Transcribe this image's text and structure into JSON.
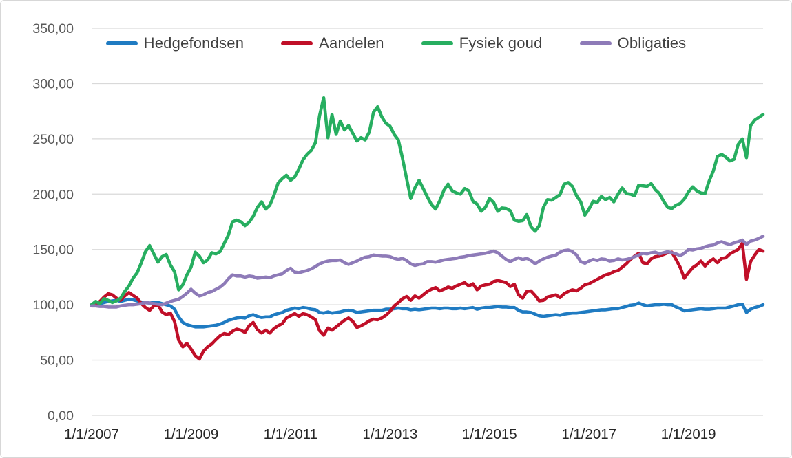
{
  "chart_data": {
    "type": "line",
    "title": "",
    "xlabel": "",
    "ylabel": "",
    "grid": "horizontal",
    "legend_position": "top",
    "x_frequency": "monthly",
    "x_range": [
      "1/1/2007",
      "7/1/2020"
    ],
    "ylim": [
      0,
      350
    ],
    "y_tick_labels": [
      "0,00",
      "50,00",
      "100,00",
      "150,00",
      "200,00",
      "250,00",
      "300,00",
      "350,00"
    ],
    "x_tick_labels": [
      "1/1/2007",
      "1/1/2009",
      "1/1/2011",
      "1/1/2013",
      "1/1/2015",
      "1/1/2017",
      "1/1/2019"
    ],
    "x_tick_month_indices": [
      0,
      24,
      48,
      72,
      96,
      120,
      144
    ],
    "colors": {
      "grid": "#d9d9d9",
      "y_tick_text": "#595959",
      "x_tick_text": "#262626",
      "legend_text": "#404040"
    },
    "series": [
      {
        "name": "Hedgefondsen",
        "color": "#1f7bc2",
        "values": [
          100,
          100.5,
          101,
          102,
          103,
          103.5,
          104,
          103,
          104,
          105,
          104.5,
          103.5,
          102.5,
          102,
          101.5,
          102,
          102,
          101,
          100,
          99,
          96,
          89,
          84,
          82,
          81,
          80,
          80,
          80,
          80.5,
          81,
          81.5,
          82.5,
          84,
          86,
          87,
          88,
          88.5,
          88,
          90,
          91,
          89.5,
          88.5,
          89,
          89,
          91,
          92,
          93,
          95,
          96,
          97,
          96.5,
          97.5,
          97,
          96,
          95.5,
          93,
          92.5,
          93.5,
          92.5,
          93,
          93.5,
          94.5,
          95,
          94.5,
          93,
          93.5,
          94,
          94.5,
          95,
          95,
          95,
          96,
          96,
          96.5,
          97,
          96.5,
          96.5,
          95.5,
          96,
          95.5,
          96,
          96.5,
          97,
          97,
          96.5,
          97,
          97,
          96.5,
          96.5,
          97,
          96.5,
          97,
          97.5,
          96,
          97,
          97.5,
          97.5,
          98,
          98.5,
          98,
          98,
          97.5,
          97.5,
          95,
          93.5,
          93.5,
          93,
          91.5,
          90,
          89.5,
          90,
          90.5,
          91,
          90.5,
          91.5,
          92,
          92.5,
          92.5,
          93,
          93.5,
          94,
          94.5,
          95,
          95.5,
          95.5,
          96,
          96.5,
          96.5,
          97.5,
          98.5,
          99.5,
          100,
          101.5,
          100,
          99,
          99.5,
          100,
          100,
          100.5,
          100,
          100,
          98,
          96.5,
          94.5,
          95,
          95.5,
          96,
          96.5,
          96,
          96,
          96.5,
          97,
          97,
          97,
          98,
          99,
          100,
          100.5,
          93,
          96,
          97.5,
          98.5,
          100
        ]
      },
      {
        "name": "Aandelen",
        "color": "#c00f28",
        "values": [
          100,
          101,
          103,
          107,
          110,
          109,
          106,
          104,
          108,
          111,
          108.5,
          106,
          101,
          97.5,
          95,
          99,
          100,
          93.5,
          91,
          92.5,
          85,
          68,
          62,
          65,
          60,
          54,
          51,
          58,
          62,
          64.5,
          68.5,
          72,
          74,
          73,
          76,
          78,
          77,
          75,
          81,
          84,
          77.5,
          74.5,
          77,
          74.5,
          78.5,
          81,
          83,
          88,
          90,
          92,
          89.5,
          92,
          91,
          89,
          86.5,
          76.5,
          72.5,
          79,
          77,
          80,
          83,
          86,
          88,
          85,
          79.5,
          81,
          83,
          85.5,
          87,
          86.5,
          88,
          90.5,
          94,
          99,
          102,
          105.5,
          107.5,
          104,
          108,
          106,
          109,
          112,
          114,
          115.5,
          112.5,
          114,
          116,
          115,
          117,
          118.5,
          120,
          117,
          119,
          113.5,
          117,
          118,
          118.5,
          121,
          122,
          121,
          120,
          116.5,
          118.5,
          109,
          106,
          112,
          112.5,
          108.5,
          103.5,
          104,
          107,
          108,
          109,
          106.5,
          110,
          112,
          113.5,
          112.5,
          115,
          118,
          119,
          121,
          123,
          125,
          127,
          128,
          130,
          131,
          134,
          137,
          141,
          144,
          146.5,
          138,
          137,
          141.5,
          143.5,
          144,
          145.5,
          147,
          147.5,
          141,
          134,
          124,
          129,
          133.5,
          136,
          139.5,
          135,
          139,
          141.5,
          138,
          142,
          142.5,
          146,
          148,
          150,
          155.5,
          123,
          139,
          145,
          150,
          148.5
        ]
      },
      {
        "name": "Fysiek goud",
        "color": "#27ae60",
        "values": [
          100,
          103,
          101,
          105.5,
          104,
          102,
          103.5,
          106,
          112,
          117,
          124,
          129,
          138,
          148,
          153.5,
          146,
          138.5,
          143.5,
          145.5,
          136,
          130,
          113.5,
          118,
          127,
          134,
          147.5,
          144,
          138,
          140.5,
          147,
          146,
          148,
          155.5,
          163,
          175,
          176.5,
          175,
          171.5,
          174.5,
          180,
          188,
          193,
          186.5,
          190,
          199,
          210,
          214,
          217,
          212.5,
          215.5,
          222.5,
          231,
          236,
          239.5,
          246.5,
          271,
          287,
          251,
          272,
          254,
          266,
          258,
          262,
          255,
          248,
          251,
          249,
          256,
          274,
          279,
          270,
          264,
          261.5,
          254,
          249,
          232.5,
          214,
          196,
          205.5,
          212.5,
          205,
          197.5,
          190.5,
          186.5,
          194,
          203.5,
          209,
          203,
          201,
          200,
          205,
          203,
          193.5,
          191,
          184.5,
          188,
          196,
          192.5,
          184.5,
          187.5,
          187,
          185,
          176.5,
          175.5,
          176,
          181.5,
          170.5,
          166.5,
          171.5,
          188,
          195,
          194.5,
          197,
          199.5,
          209,
          210.5,
          207,
          198.5,
          193,
          181,
          186.5,
          193.5,
          192.5,
          198,
          195,
          197,
          193,
          200,
          205.5,
          200.5,
          200,
          198.5,
          208,
          207.5,
          207,
          209.5,
          204,
          200.5,
          193.5,
          188,
          187,
          190,
          191.5,
          195.5,
          202,
          206.5,
          203,
          201,
          200.5,
          212,
          221,
          234,
          236,
          233.5,
          230,
          231.5,
          245,
          250,
          233,
          262,
          267,
          269.5,
          272
        ]
      },
      {
        "name": "Obligaties",
        "color": "#8e7bb8",
        "values": [
          99,
          99,
          98.5,
          98.5,
          98,
          98,
          98,
          99,
          99.5,
          100,
          100,
          100.5,
          101,
          102,
          101.5,
          101,
          100.5,
          100,
          101.5,
          103,
          104,
          105,
          107.5,
          110.5,
          114,
          110.5,
          108,
          109,
          111,
          112,
          114,
          116,
          119,
          123.5,
          127,
          126,
          126,
          125,
          126,
          125.5,
          124,
          124.5,
          125,
          124.5,
          126,
          127,
          128,
          131,
          133,
          129.5,
          129,
          130,
          131,
          132.5,
          134.5,
          137,
          138.5,
          139.5,
          140,
          140,
          140.5,
          138,
          136.5,
          138,
          139.5,
          141.5,
          143,
          143.5,
          145,
          144.5,
          144,
          144,
          143.5,
          142,
          141,
          142,
          140,
          137,
          135.5,
          136.5,
          137,
          139,
          139,
          138.5,
          139.5,
          140.5,
          141,
          141.5,
          142,
          143,
          143.5,
          144.5,
          145,
          145.5,
          146,
          146.5,
          147.5,
          148.5,
          147,
          144,
          141,
          139,
          141,
          142.5,
          141,
          142,
          140,
          137,
          139.5,
          141.5,
          143,
          144,
          145,
          147.5,
          149,
          149.5,
          148,
          145,
          139,
          137.5,
          139.5,
          141,
          140,
          141.5,
          141,
          139.5,
          140,
          141.5,
          140.5,
          141,
          142,
          143.5,
          145,
          146.5,
          146,
          147,
          147.5,
          146,
          147,
          148,
          147,
          146,
          144.5,
          146.5,
          150,
          149.5,
          150.5,
          151,
          152.5,
          153.5,
          154,
          156,
          157,
          155.5,
          154.5,
          156,
          157,
          158.5,
          154.5,
          157.5,
          158.5,
          160,
          162
        ]
      }
    ]
  }
}
